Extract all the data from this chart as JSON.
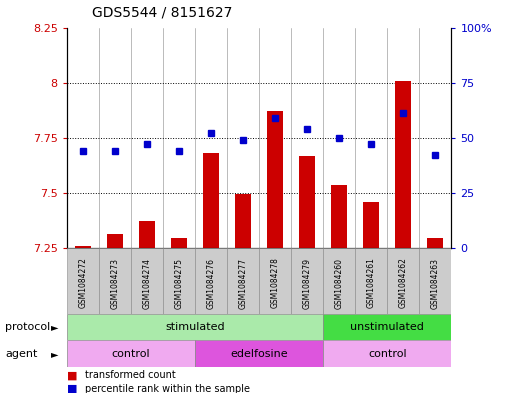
{
  "title": "GDS5544 / 8151627",
  "samples": [
    "GSM1084272",
    "GSM1084273",
    "GSM1084274",
    "GSM1084275",
    "GSM1084276",
    "GSM1084277",
    "GSM1084278",
    "GSM1084279",
    "GSM1084260",
    "GSM1084261",
    "GSM1084262",
    "GSM1084263"
  ],
  "bar_values": [
    7.255,
    7.31,
    7.37,
    7.295,
    7.68,
    7.495,
    7.872,
    7.665,
    7.535,
    7.455,
    8.005,
    7.295
  ],
  "bar_base": 7.25,
  "dot_values": [
    44,
    44,
    47,
    44,
    52,
    49,
    59,
    54,
    50,
    47,
    61,
    42
  ],
  "ylim_left": [
    7.25,
    8.25
  ],
  "ylim_right": [
    0,
    100
  ],
  "yticks_left": [
    7.25,
    7.5,
    7.75,
    8.0,
    8.25
  ],
  "yticks_left_labels": [
    "7.25",
    "7.5",
    "7.75",
    "8",
    "8.25"
  ],
  "yticks_right": [
    0,
    25,
    50,
    75,
    100
  ],
  "yticks_right_labels": [
    "0",
    "25",
    "50",
    "75",
    "100%"
  ],
  "bar_color": "#cc0000",
  "dot_color": "#0000cc",
  "protocol_stimulated_color": "#aaeaaa",
  "protocol_unstimulated_color": "#44dd44",
  "agent_control_color": "#f0aaf0",
  "agent_edelfosine_color": "#dd55dd",
  "tick_color_left": "#cc0000",
  "tick_color_right": "#0000cc",
  "legend_items": [
    "transformed count",
    "percentile rank within the sample"
  ],
  "protocol_label": "protocol",
  "agent_label": "agent",
  "bg_color": "#ffffff",
  "sample_box_color": "#cccccc",
  "border_color": "#000000",
  "n_stimulated": 8,
  "n_control1": 4,
  "n_edelfosine": 4
}
